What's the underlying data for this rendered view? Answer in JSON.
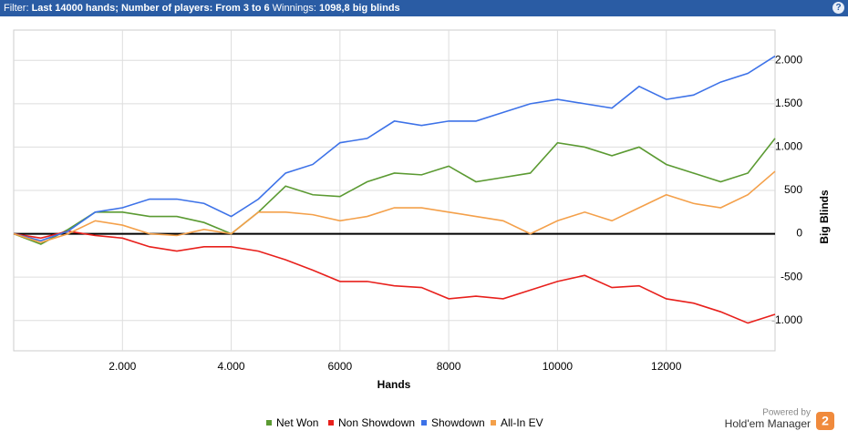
{
  "header": {
    "filter_label": "Filter:",
    "filter_text": "Last 14000 hands; Number of players: From 3 to 6",
    "winnings_label": "Winnings:",
    "winnings_value": "1098,8 big blinds",
    "help": "?"
  },
  "chart_data": {
    "type": "line",
    "x_label": "Hands",
    "y_label": "Big Blinds",
    "x": [
      0,
      500,
      1000,
      1500,
      2000,
      2500,
      3000,
      3500,
      4000,
      4500,
      5000,
      5500,
      6000,
      6500,
      7000,
      7500,
      8000,
      8500,
      9000,
      9500,
      10000,
      10500,
      11000,
      11500,
      12000,
      12500,
      13000,
      13500,
      14000
    ],
    "series": [
      {
        "name": "Net Won",
        "color": "#5b9a32",
        "values": [
          0,
          -120,
          50,
          250,
          250,
          200,
          200,
          130,
          0,
          250,
          550,
          450,
          430,
          600,
          700,
          680,
          780,
          600,
          650,
          700,
          1050,
          1000,
          900,
          1000,
          800,
          700,
          600,
          700,
          1100
        ]
      },
      {
        "name": "Non Showdown",
        "color": "#e8201c",
        "values": [
          0,
          -50,
          30,
          -20,
          -50,
          -150,
          -200,
          -150,
          -150,
          -200,
          -300,
          -420,
          -550,
          -550,
          -600,
          -620,
          -750,
          -720,
          -750,
          -650,
          -550,
          -480,
          -620,
          -600,
          -750,
          -800,
          -900,
          -1030,
          -930
        ]
      },
      {
        "name": "Showdown",
        "color": "#3d72e8",
        "values": [
          0,
          -80,
          30,
          250,
          300,
          400,
          400,
          350,
          200,
          400,
          700,
          800,
          1050,
          1100,
          1300,
          1250,
          1300,
          1300,
          1400,
          1500,
          1550,
          1500,
          1450,
          1700,
          1550,
          1600,
          1750,
          1850,
          2050
        ]
      },
      {
        "name": "All-In EV",
        "color": "#f4a04a",
        "values": [
          0,
          -100,
          0,
          150,
          100,
          0,
          -20,
          50,
          0,
          250,
          250,
          220,
          150,
          200,
          300,
          300,
          250,
          200,
          150,
          0,
          150,
          250,
          150,
          300,
          450,
          350,
          300,
          450,
          720
        ]
      }
    ],
    "xlim": [
      0,
      14000
    ],
    "ylim": [
      -1350,
      2350
    ],
    "xticks": [
      {
        "value": 2000,
        "label": "2.000"
      },
      {
        "value": 4000,
        "label": "4.000"
      },
      6000,
      8000,
      10000,
      12000
    ],
    "yticks": [
      {
        "value": -1000,
        "label": "-1.000"
      },
      -500,
      0,
      500,
      {
        "value": 1000,
        "label": "1.000"
      },
      {
        "value": 1500,
        "label": "1.500"
      },
      {
        "value": 2000,
        "label": "2.000"
      }
    ],
    "grid": true
  },
  "footer": {
    "powered": "Powered by",
    "brand": "Hold'em Manager",
    "logo": "2"
  }
}
